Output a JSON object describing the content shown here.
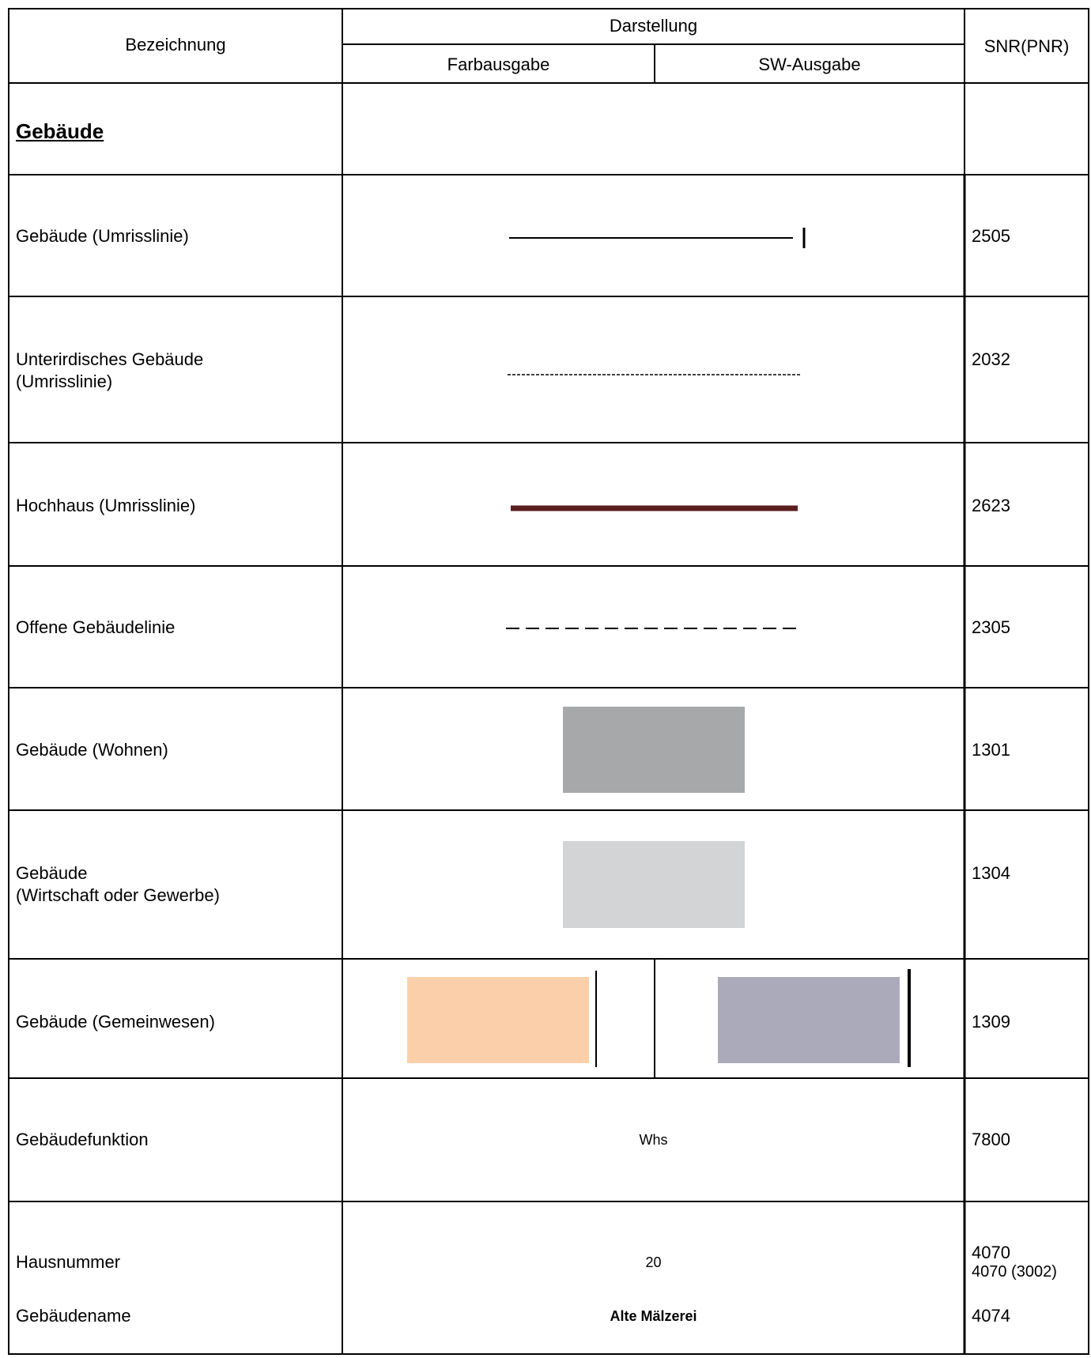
{
  "header": {
    "bezeichnung": "Bezeichnung",
    "darstellung": "Darstellung",
    "farbausgabe": "Farbausgabe",
    "sw_ausgabe": "SW-Ausgabe",
    "snr": "SNR(PNR)"
  },
  "section": {
    "title": "Gebäude"
  },
  "rows": [
    {
      "label": "Gebäude (Umrisslinie)",
      "snr": "2505",
      "symbol": "solid-outline-line"
    },
    {
      "label": "Unterirdisches Gebäude\n(Umrisslinie)",
      "snr": "2032",
      "symbol": "fine-dashed-line"
    },
    {
      "label": "Hochhaus (Umrisslinie)",
      "snr": "2623",
      "symbol": "thick-solid-line",
      "color": "#5a1e1e"
    },
    {
      "label": "Offene Gebäudelinie",
      "snr": "2305",
      "symbol": "dashed-line"
    },
    {
      "label": "Gebäude (Wohnen)",
      "snr": "1301",
      "symbol": "filled-rectangle",
      "color": "#a7a8aa"
    },
    {
      "label": "Gebäude\n(Wirtschaft oder Gewerbe)",
      "snr": "1304",
      "symbol": "filled-rectangle",
      "color": "#d3d4d5"
    },
    {
      "label": "Gebäude (Gemeinwesen)",
      "snr": "1309",
      "symbol": "filled-rectangle-with-bar",
      "color_farbe": "#fccfab",
      "color_sw": "#abaabb"
    },
    {
      "label": "Gebäudefunktion",
      "snr": "7800",
      "sample": "Whs"
    },
    {
      "label": "Hausnummer",
      "snr": "4070",
      "snr_secondary": "4070 (3002)",
      "sample": "20"
    },
    {
      "label": "Gebäudename",
      "snr": "4074",
      "sample": "Alte Mälzerei"
    }
  ],
  "colors": {
    "grid": "#000000",
    "text": "#000000"
  }
}
